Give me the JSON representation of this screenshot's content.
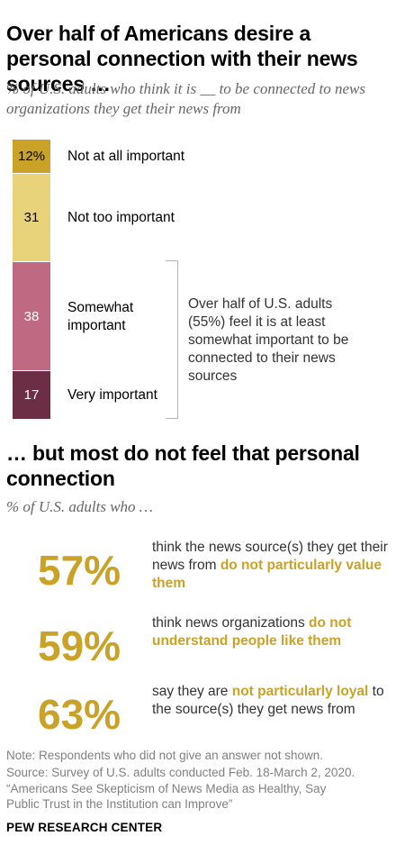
{
  "title1": "Over half of Americans desire a personal connection with their news sources …",
  "subtitle1": "% of U.S. adults who think it is __ to be connected to news organizations they get their news from",
  "chart_data": {
    "type": "bar",
    "orientation": "stacked-vertical",
    "categories": [
      "Not at all important",
      "Not too important",
      "Somewhat important",
      "Very important"
    ],
    "values": [
      12,
      31,
      38,
      17
    ],
    "value_labels": [
      "12%",
      "31",
      "38",
      "17"
    ],
    "colors": [
      "#c9a227",
      "#e8d27a",
      "#bf6a82",
      "#6b2e45"
    ],
    "label_colors": [
      "#000000",
      "#000000",
      "#ffffff",
      "#ffffff"
    ]
  },
  "callout": "Over half of U.S. adults (55%) feel it is at least somewhat important to be connected to their news sources",
  "title2": "… but most do not feel that personal connection",
  "subtitle2": "% of U.S. adults who …",
  "stats": [
    {
      "value": "57%",
      "parts": [
        {
          "t": "think the news source(s) they get their news from ",
          "hl": false
        },
        {
          "t": "do not particularly value them",
          "hl": true
        }
      ]
    },
    {
      "value": "59%",
      "parts": [
        {
          "t": "think news organizations ",
          "hl": false
        },
        {
          "t": "do not understand people like them",
          "hl": true
        }
      ]
    },
    {
      "value": "63%",
      "parts": [
        {
          "t": "say they are ",
          "hl": false
        },
        {
          "t": "not particularly loyal",
          "hl": true
        },
        {
          "t": " to the source(s) they get news from",
          "hl": false
        }
      ]
    }
  ],
  "accent_color": "#c9a227",
  "note": "Note: Respondents who did not give an answer not shown.",
  "source_line": "Source: Survey of U.S. adults conducted Feb. 18-March 2, 2020.",
  "report_title": "“Americans See Skepticism of News Media as Healthy, Say Public Trust in the Institution can Improve”",
  "org": "PEW RESEARCH CENTER"
}
